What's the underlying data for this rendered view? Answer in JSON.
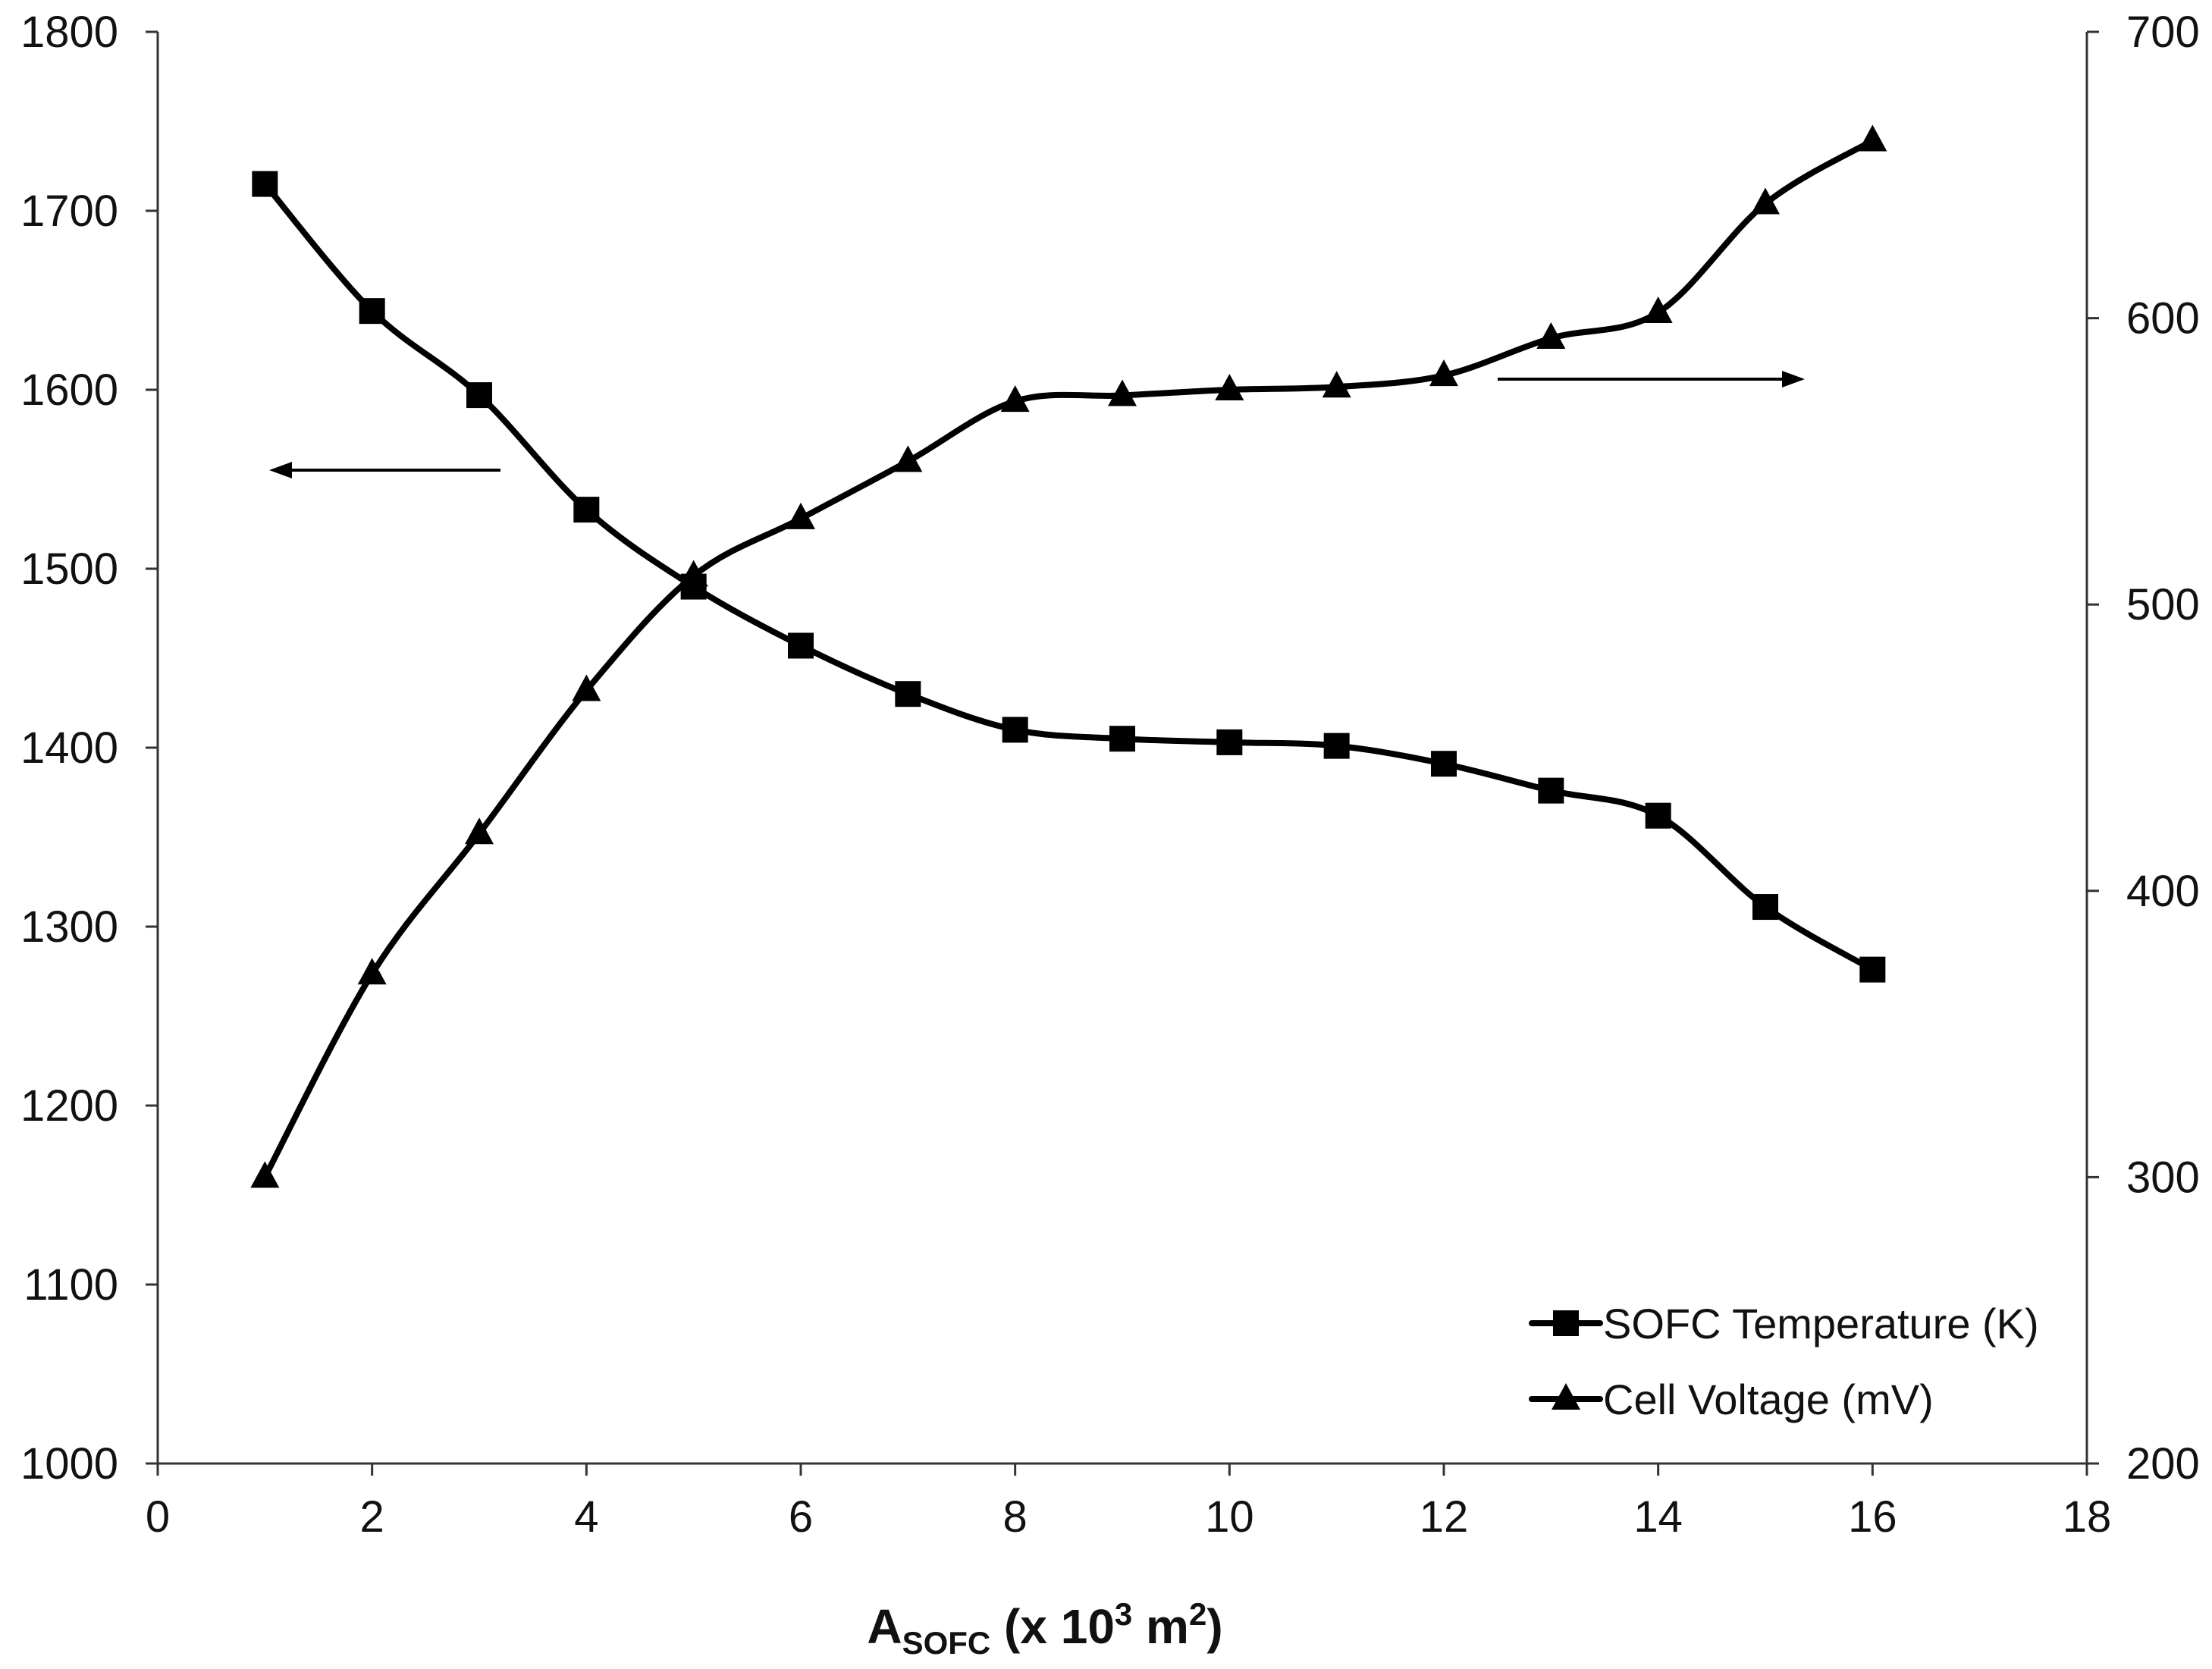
{
  "chart_data": {
    "type": "line",
    "title": "",
    "xlabel": {
      "main": "A",
      "subscript": "SOFC",
      "rest_a": " (x 10",
      "sup1": "3",
      "rest_b": " m",
      "sup2": "2",
      "rest_c": ")"
    },
    "xlim": [
      0,
      18
    ],
    "x_ticks": [
      0,
      2,
      4,
      6,
      8,
      10,
      12,
      14,
      16,
      18
    ],
    "y_left": {
      "label": "",
      "lim": [
        1000,
        1800
      ],
      "ticks": [
        1000,
        1100,
        1200,
        1300,
        1400,
        1500,
        1600,
        1700,
        1800
      ]
    },
    "y_right": {
      "label": "",
      "lim": [
        200,
        700
      ],
      "ticks": [
        200,
        300,
        400,
        500,
        600,
        700
      ]
    },
    "x": [
      1,
      2,
      3,
      4,
      5,
      6,
      7,
      8,
      9,
      10,
      11,
      12,
      13,
      14,
      15,
      16
    ],
    "series": [
      {
        "name": "SOFC Temperature (K)",
        "axis": "left",
        "marker": "square",
        "values": [
          1715,
          1644,
          1597,
          1533,
          1490,
          1457,
          1430,
          1410,
          1405,
          1403,
          1401,
          1391,
          1376,
          1362,
          1311,
          1276
        ]
      },
      {
        "name": "Cell Voltage (mV)",
        "axis": "right",
        "marker": "triangle",
        "values": [
          300,
          371,
          420,
          470,
          510,
          530,
          550,
          571,
          573,
          575,
          576,
          580,
          593,
          602,
          640,
          662
        ]
      }
    ],
    "annotations": [
      {
        "type": "arrow",
        "direction": "left",
        "meaning": "SOFC Temperature reads on left axis"
      },
      {
        "type": "arrow",
        "direction": "right",
        "meaning": "Cell Voltage reads on right axis"
      }
    ],
    "legend": "bottom-right",
    "grid": false,
    "color": "#000000"
  }
}
